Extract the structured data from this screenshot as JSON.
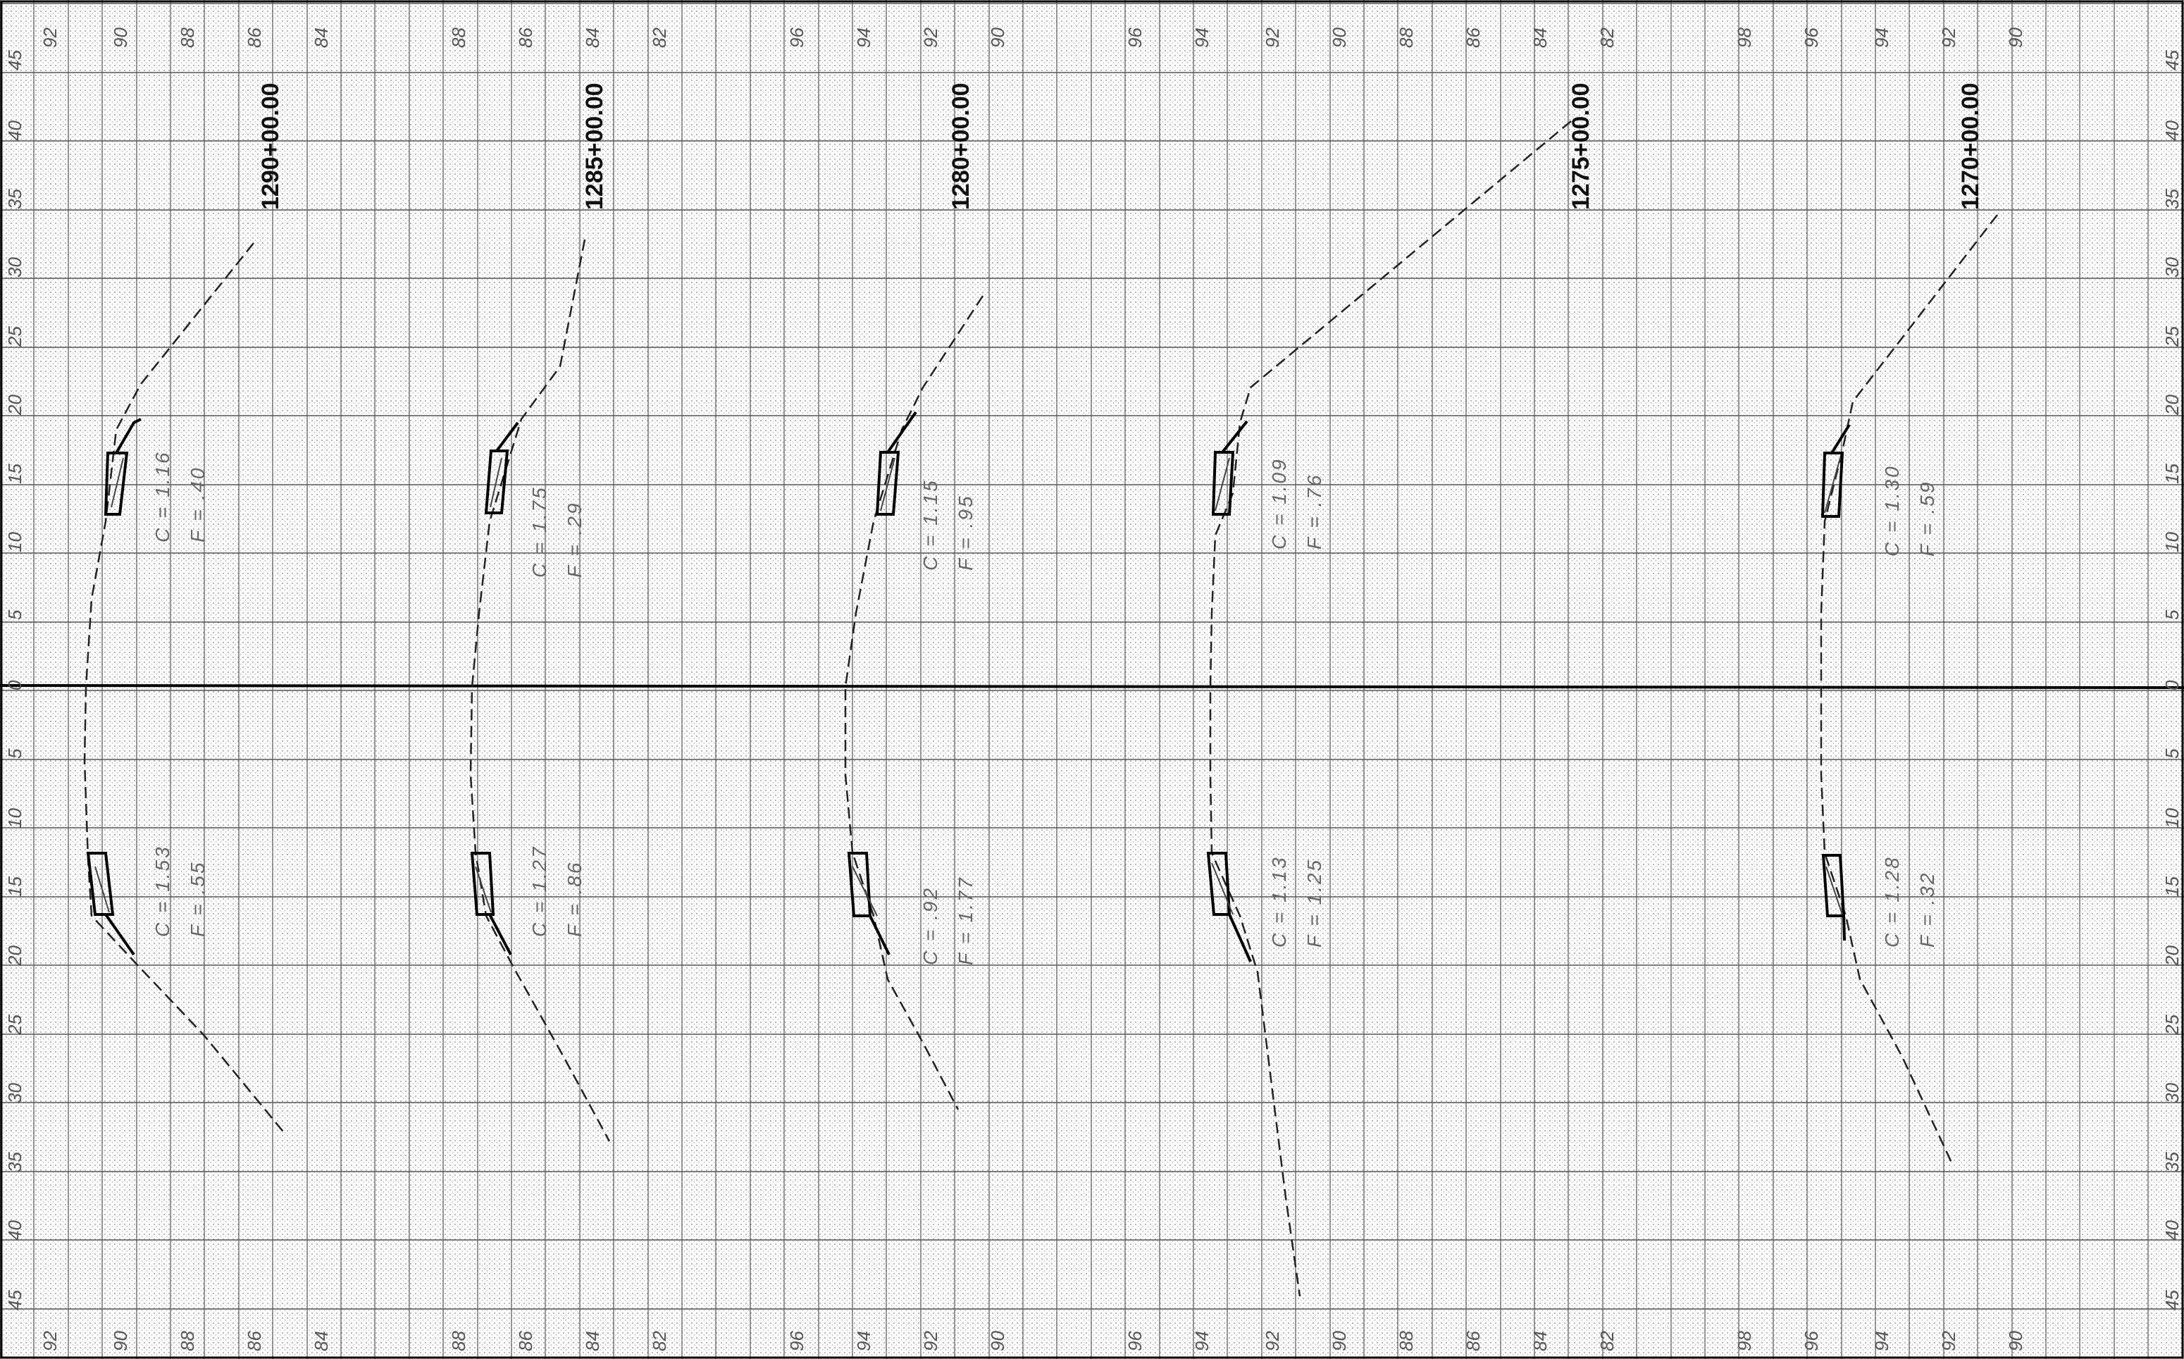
{
  "offset_ticks": [
    "45",
    "40",
    "35",
    "30",
    "25",
    "20",
    "15",
    "10",
    "5",
    "0",
    "5",
    "10",
    "15",
    "20",
    "25",
    "30",
    "35",
    "40",
    "45"
  ],
  "top_elevations": [
    {
      "label": "92"
    },
    {
      "label": "90"
    },
    {
      "label": "88"
    },
    {
      "label": "86"
    },
    {
      "label": "84"
    },
    {
      "label": "88"
    },
    {
      "label": "86"
    },
    {
      "label": "84"
    },
    {
      "label": "82"
    },
    {
      "label": "96"
    },
    {
      "label": "94"
    },
    {
      "label": "92"
    },
    {
      "label": "90"
    },
    {
      "label": "96"
    },
    {
      "label": "94"
    },
    {
      "label": "92"
    },
    {
      "label": "90"
    },
    {
      "label": "88"
    },
    {
      "label": "86"
    },
    {
      "label": "84"
    },
    {
      "label": "82"
    },
    {
      "label": "98"
    },
    {
      "label": "96"
    },
    {
      "label": "94"
    },
    {
      "label": "92"
    },
    {
      "label": "90"
    }
  ],
  "bottom_elevations": [
    {
      "label": "92"
    },
    {
      "label": "90"
    },
    {
      "label": "88"
    },
    {
      "label": "86"
    },
    {
      "label": "84"
    },
    {
      "label": "88"
    },
    {
      "label": "86"
    },
    {
      "label": "84"
    },
    {
      "label": "82"
    },
    {
      "label": "96"
    },
    {
      "label": "94"
    },
    {
      "label": "92"
    },
    {
      "label": "90"
    },
    {
      "label": "96"
    },
    {
      "label": "94"
    },
    {
      "label": "92"
    },
    {
      "label": "90"
    },
    {
      "label": "88"
    },
    {
      "label": "86"
    },
    {
      "label": "84"
    },
    {
      "label": "82"
    },
    {
      "label": "98"
    },
    {
      "label": "96"
    },
    {
      "label": "94"
    },
    {
      "label": "92"
    },
    {
      "label": "90"
    }
  ],
  "sections": [
    {
      "station": "1290+00.00",
      "left": {
        "c": "C = 1.16",
        "f": "F = .40"
      },
      "right": {
        "c": "C = 1.53",
        "f": "F = .55"
      }
    },
    {
      "station": "1285+00.00",
      "left": {
        "c": "C = 1.75",
        "f": "F = .29"
      },
      "right": {
        "c": "C = 1.27",
        "f": "F = .86"
      }
    },
    {
      "station": "1280+00.00",
      "left": {
        "c": "C = 1.15",
        "f": "F = .95"
      },
      "right": {
        "c": "C = .92",
        "f": "F = 1.77"
      }
    },
    {
      "station": "1275+00.00",
      "left": {
        "c": "C = 1.09",
        "f": "F = .76"
      },
      "right": {
        "c": "C = 1.13",
        "f": "F = 1.25"
      }
    },
    {
      "station": "1270+00.00",
      "left": {
        "c": "C = 1.30",
        "f": "F = .59"
      },
      "right": {
        "c": "C = 1.28",
        "f": "F = .32"
      }
    }
  ]
}
